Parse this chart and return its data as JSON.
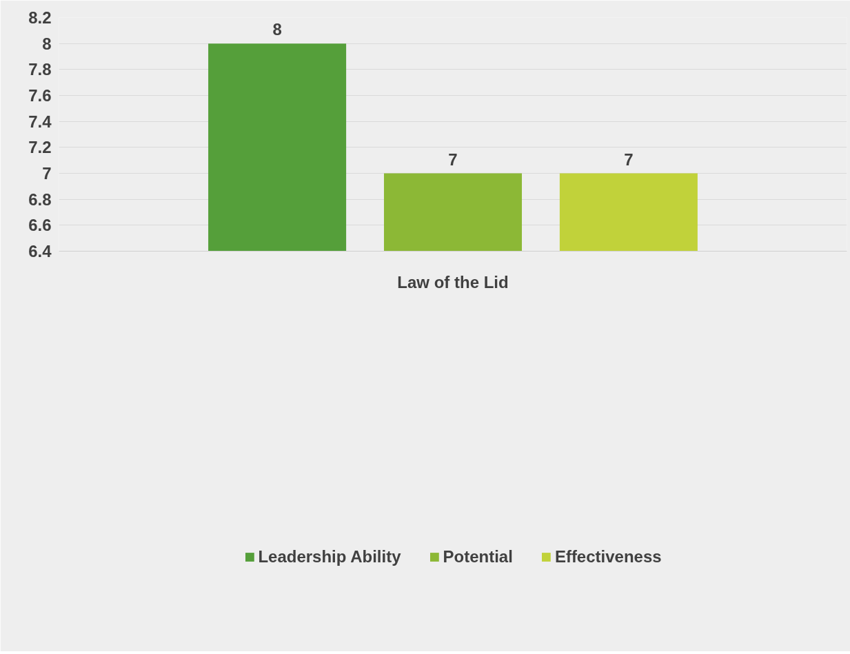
{
  "chart_data": {
    "type": "bar",
    "categories": [
      "Law of the Lid"
    ],
    "series": [
      {
        "name": "Leadership Ability",
        "color": "#559f3a",
        "values": [
          8
        ]
      },
      {
        "name": "Potential",
        "color": "#8cb836",
        "values": [
          7
        ]
      },
      {
        "name": "Effectiveness",
        "color": "#c1d23a",
        "values": [
          7
        ]
      }
    ],
    "ylim": [
      6.4,
      8.2
    ],
    "yticks": [
      6.4,
      6.6,
      6.8,
      7,
      7.2,
      7.4,
      7.6,
      7.8,
      8,
      8.2
    ],
    "grid": "y",
    "legend": "bottom",
    "data_labels": true
  }
}
